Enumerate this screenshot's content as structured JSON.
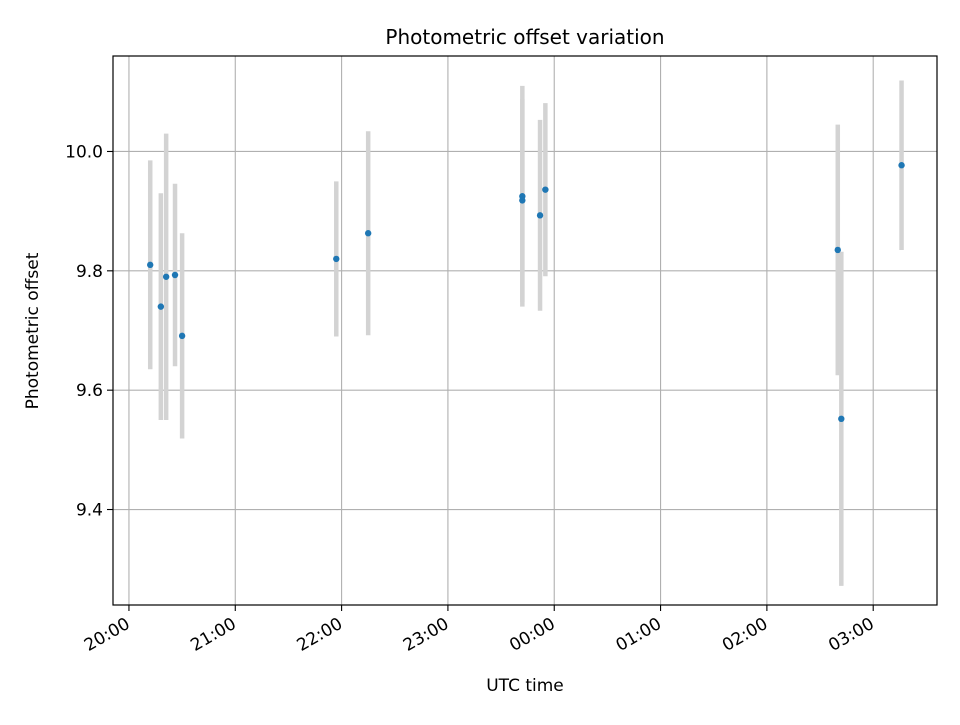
{
  "chart_data": {
    "type": "scatter",
    "title": "Photometric offset variation",
    "xlabel": "UTC time",
    "ylabel": "Photometric offset",
    "x_axis": {
      "format": "HH:MM",
      "range": [
        "19:51",
        "03:36 (+1 day)"
      ],
      "ticks": [
        "20:00",
        "21:00",
        "22:00",
        "23:00",
        "00:00",
        "01:00",
        "02:00",
        "03:00"
      ]
    },
    "y_axis": {
      "range": [
        9.24,
        10.16
      ],
      "ticks": [
        "9.4",
        "9.6",
        "9.8",
        "10.0"
      ]
    },
    "grid": true,
    "marker_color": "#1f77b4",
    "errorbar_color": "#d3d3d3",
    "points": [
      {
        "time": "20:12",
        "y": 9.81,
        "err": 0.175
      },
      {
        "time": "20:18",
        "y": 9.74,
        "err": 0.19
      },
      {
        "time": "20:21",
        "y": 9.79,
        "err": 0.24
      },
      {
        "time": "20:26",
        "y": 9.793,
        "err": 0.153
      },
      {
        "time": "20:30",
        "y": 9.691,
        "err": 0.172
      },
      {
        "time": "21:57",
        "y": 9.82,
        "err": 0.13
      },
      {
        "time": "22:15",
        "y": 9.863,
        "err": 0.171
      },
      {
        "time": "23:42",
        "y": 9.918,
        "err": 0.17
      },
      {
        "time": "23:42",
        "y": 9.925,
        "err": 0.185
      },
      {
        "time": "23:52",
        "y": 9.893,
        "err": 0.16
      },
      {
        "time": "23:55",
        "y": 9.936,
        "err": 0.145
      },
      {
        "time": "02:40",
        "y": 9.835,
        "err": 0.21
      },
      {
        "time": "02:42",
        "y": 9.552,
        "err": 0.28
      },
      {
        "time": "03:16",
        "y": 9.977,
        "err": 0.142
      }
    ]
  }
}
